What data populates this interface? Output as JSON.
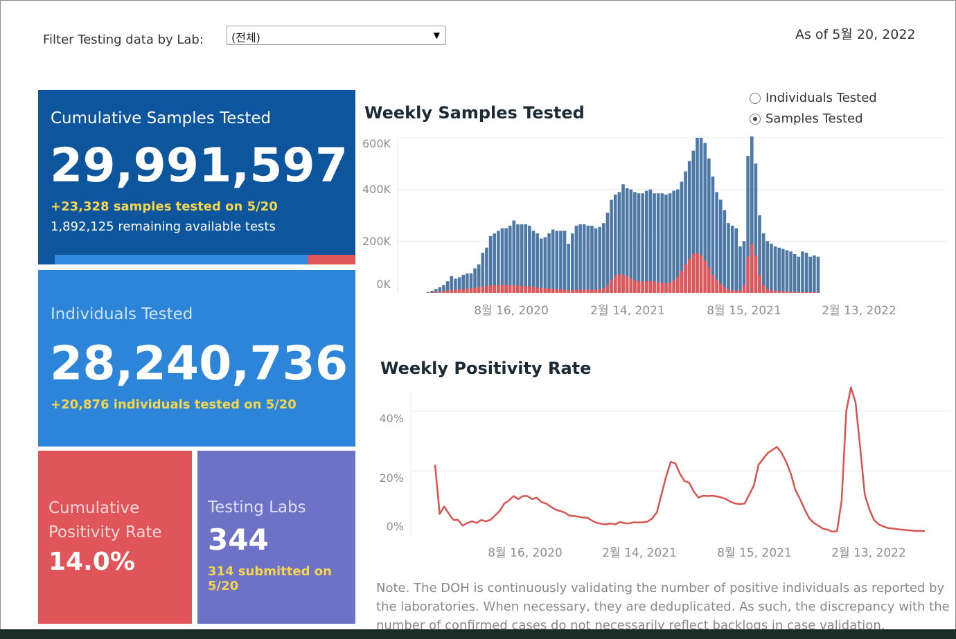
{
  "filter": {
    "label": "Filter Testing data by Lab:",
    "selected": "(전체)"
  },
  "as_of": "As of 5월 20, 2022",
  "tiles": {
    "cumulative_samples": {
      "title": "Cumulative Samples Tested",
      "value": "29,991,597",
      "delta": "+23,328 samples tested on 5/20",
      "remaining": "1,892,125 remaining available tests",
      "used_fraction": 0.84,
      "color": "#0d559c"
    },
    "individuals": {
      "title": "Individuals Tested",
      "value": "28,240,736",
      "delta": "+20,876  individuals  tested on 5/20",
      "color": "#2c85d9"
    },
    "positivity": {
      "title_line1": "Cumulative",
      "title_line2": "Positivity Rate",
      "value": "14.0%",
      "color": "#e05559"
    },
    "labs": {
      "title": "Testing Labs",
      "value": "344",
      "delta": "314 submitted on 5/20",
      "color": "#6d72c6"
    }
  },
  "toggle": {
    "options": [
      {
        "label": "Individuals Tested",
        "checked": false
      },
      {
        "label": "Samples Tested",
        "checked": true
      }
    ]
  },
  "weekly_samples": {
    "title": "Weekly Samples Tested"
  },
  "weekly_positivity": {
    "title": "Weekly Positivity Rate"
  },
  "note": "Note. The DOH is continuously validating the number of positive individuals as reported by the laboratories. When necessary, they are deduplicated. As such, the discrepancy with the number of confirmed cases do not necessarily reflect backlogs in case validation.",
  "colors": {
    "total": "#4e79a7",
    "positive": "#e15759",
    "line": "#d9534f"
  },
  "chart_data": [
    {
      "type": "bar",
      "title": "Weekly Samples Tested",
      "x_start": "2020-03-08",
      "x_interval": "week",
      "x_ticks": [
        "8월 16, 2020",
        "2월 14, 2021",
        "8월 15, 2021",
        "2월 13, 2022"
      ],
      "y_ticks": [
        "600K",
        "400K",
        "200K",
        "0K"
      ],
      "ylim": [
        0,
        600000
      ],
      "series": [
        {
          "name": "",
          "values": [
            3000,
            8000,
            15000,
            22000,
            30000,
            45000,
            65000,
            55000,
            60000,
            70000,
            75000,
            75000,
            95000,
            110000,
            155000,
            175000,
            220000,
            230000,
            240000,
            250000,
            250000,
            260000,
            280000,
            265000,
            265000,
            265000,
            260000,
            240000,
            230000,
            210000,
            215000,
            230000,
            245000,
            240000,
            240000,
            240000,
            190000,
            230000,
            260000,
            265000,
            265000,
            260000,
            260000,
            250000,
            255000,
            270000,
            310000,
            360000,
            380000,
            390000,
            420000,
            405000,
            400000,
            390000,
            385000,
            385000,
            395000,
            400000,
            385000,
            385000,
            385000,
            380000,
            385000,
            395000,
            400000,
            430000,
            470000,
            510000,
            550000,
            600000,
            600000,
            580000,
            520000,
            450000,
            390000,
            360000,
            320000,
            270000,
            260000,
            250000,
            180000,
            200000,
            530000,
            605000,
            500000,
            300000,
            230000,
            200000,
            190000,
            180000,
            175000,
            170000,
            165000,
            160000,
            150000,
            140000,
            160000,
            155000,
            140000,
            145000,
            140000
          ]
        },
        {
          "name": "",
          "values": [
            500,
            1500,
            3000,
            5000,
            7000,
            9000,
            12000,
            12000,
            14000,
            15000,
            17000,
            18000,
            20000,
            22000,
            25000,
            27000,
            29000,
            30000,
            31000,
            31000,
            30000,
            29000,
            29000,
            28000,
            27000,
            26000,
            25000,
            23000,
            21000,
            19000,
            18000,
            17000,
            16000,
            15000,
            14000,
            13000,
            11000,
            11000,
            12000,
            13000,
            13000,
            12000,
            12000,
            13000,
            14000,
            18000,
            30000,
            50000,
            66000,
            72000,
            70000,
            65000,
            55000,
            48000,
            45000,
            44000,
            45000,
            46000,
            44000,
            40000,
            38000,
            37000,
            40000,
            48000,
            62000,
            85000,
            110000,
            130000,
            150000,
            155000,
            145000,
            125000,
            100000,
            70000,
            50000,
            35000,
            22000,
            14000,
            10000,
            8000,
            10000,
            30000,
            140000,
            190000,
            145000,
            70000,
            30000,
            15000,
            10000,
            8000,
            7000,
            6000,
            5000,
            4000,
            3500,
            3000,
            3000,
            2500,
            2500,
            2000,
            2000
          ]
        }
      ]
    },
    {
      "type": "line",
      "title": "Weekly Positivity Rate",
      "x_start": "2020-03-08",
      "x_interval": "week",
      "x_ticks": [
        "8월 16, 2020",
        "2월 14, 2021",
        "8월 15, 2021",
        "2월 13, 2022"
      ],
      "y_ticks": [
        "40%",
        "20%",
        "0%"
      ],
      "ylim": [
        0,
        45
      ],
      "series": [
        {
          "name": "",
          "values": [
            22,
            5.5,
            8,
            5.5,
            3.5,
            3.5,
            1.5,
            2.5,
            3,
            2.5,
            3.5,
            3,
            3.5,
            5,
            6.5,
            9,
            10,
            11.5,
            10.5,
            11.5,
            11.5,
            10.5,
            11,
            9.5,
            9,
            8,
            7,
            6.5,
            6,
            5,
            4.8,
            4.6,
            4.3,
            4.2,
            3.2,
            2.5,
            2.2,
            2.0,
            2.3,
            2.0,
            2.8,
            2.4,
            2.3,
            2.7,
            2.6,
            2.7,
            2.9,
            4,
            6,
            12,
            18,
            23,
            22.5,
            19,
            16.5,
            16,
            13,
            11,
            11.6,
            11.5,
            11.6,
            11.4,
            11,
            10.5,
            9.5,
            9,
            8.8,
            9,
            12,
            15,
            22,
            24,
            26,
            27,
            28,
            26,
            23,
            19,
            13.5,
            10.5,
            7,
            4,
            2.5,
            1.5,
            0.5,
            0.2,
            -0.5,
            -0.3,
            10,
            40,
            48,
            43,
            28,
            12,
            7,
            3.5,
            2,
            1.3,
            0.8,
            0.6,
            0.4,
            0.2,
            0.1,
            -0.1,
            -0.2,
            -0.2,
            -0.3
          ]
        }
      ]
    }
  ]
}
